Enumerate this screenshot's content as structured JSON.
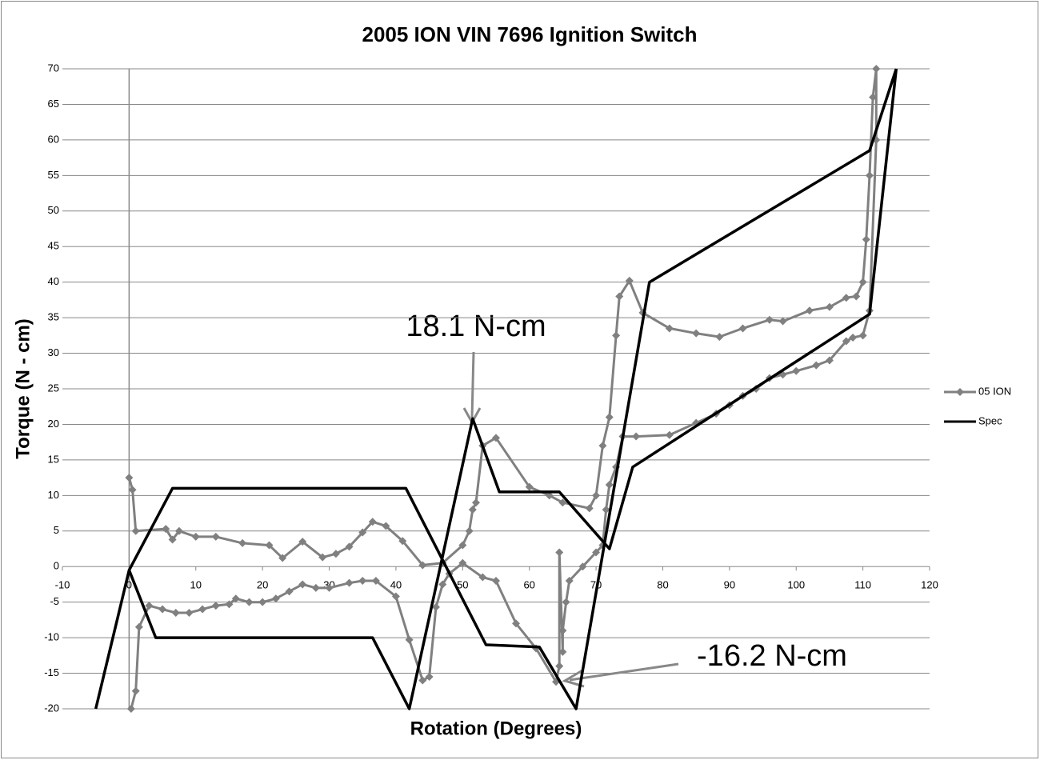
{
  "chart_data": {
    "type": "line",
    "title": "2005 ION VIN 7696 Ignition Switch",
    "x_label": "Rotation (Degrees)",
    "y_label": "Torque (N - cm)",
    "annotations": [
      "18.1 N-cm",
      "-16.2 N-cm"
    ],
    "xlim": [
      -10,
      120
    ],
    "xticks": [
      -10,
      0,
      10,
      20,
      30,
      40,
      50,
      60,
      70,
      80,
      90,
      100,
      110,
      120
    ],
    "ylim": [
      -20,
      70
    ],
    "yticks": [
      -20,
      -15,
      -10,
      -5,
      0,
      5,
      10,
      15,
      20,
      25,
      30,
      35,
      40,
      45,
      50,
      55,
      60,
      65,
      70
    ],
    "grid": true,
    "legend": "right",
    "series": [
      {
        "name": "05 ION",
        "color": "#808080",
        "marker": "diamond",
        "x": [
          0,
          0.5,
          1,
          5.5,
          6.5,
          7.5,
          10,
          13,
          17,
          21,
          23,
          26,
          29,
          31,
          33,
          35,
          36.5,
          38.5,
          41,
          44,
          47,
          50,
          51,
          51.5,
          52,
          53,
          55,
          60,
          63,
          65,
          69,
          70,
          71,
          72,
          73,
          73.5,
          75,
          77,
          81,
          85,
          88.5,
          92,
          96,
          98,
          102,
          105,
          107.5,
          109,
          110,
          110.5,
          111,
          111.5,
          112,
          112,
          111,
          110,
          108.5,
          107.5,
          105,
          103,
          100,
          98,
          96,
          94,
          92,
          90,
          88,
          85,
          81,
          76,
          74,
          73,
          72,
          71.5,
          71,
          70,
          68,
          66,
          65.5,
          65,
          65,
          64.5,
          64.5,
          64,
          61,
          58,
          55,
          53,
          50,
          48,
          47,
          46,
          45,
          44,
          42,
          40,
          37,
          35,
          33,
          30,
          28,
          26,
          24,
          22,
          20,
          18,
          16,
          15,
          13,
          11,
          9,
          7,
          5,
          3,
          1.5,
          1,
          0.3
        ],
        "values": [
          12.5,
          10.8,
          5,
          5.3,
          3.8,
          5,
          4.2,
          4.2,
          3.3,
          3,
          1.2,
          3.5,
          1.3,
          1.8,
          2.8,
          4.8,
          6.3,
          5.7,
          3.6,
          0.2,
          0.5,
          3,
          5,
          8,
          9,
          17,
          18.1,
          11.2,
          10,
          9,
          8.2,
          10,
          17,
          21,
          32.5,
          38,
          40.2,
          35.7,
          33.5,
          32.8,
          32.3,
          33.5,
          34.7,
          34.5,
          36,
          36.5,
          37.8,
          38,
          40,
          46,
          55,
          66,
          70,
          60,
          36,
          32.5,
          32.2,
          31.7,
          29,
          28.3,
          27.5,
          27,
          26.5,
          25,
          24,
          22.7,
          21.5,
          20.2,
          18.5,
          18.3,
          18.3,
          14,
          11.5,
          8,
          3,
          2,
          0,
          -2,
          -5,
          -9,
          -12,
          2,
          -14,
          -16.2,
          -11.5,
          -8,
          -2,
          -1.5,
          0.5,
          -1,
          -2.5,
          -5.7,
          -15.5,
          -16,
          -10.3,
          -4.2,
          -2,
          -2,
          -2.3,
          -3,
          -3,
          -2.5,
          -3.5,
          -4.5,
          -5,
          -5,
          -4.5,
          -5.3,
          -5.5,
          -6,
          -6.5,
          -6.5,
          -6,
          -5.5,
          -8.5,
          -17.5,
          -20
        ]
      },
      {
        "name": "Spec",
        "color": "#000000",
        "x": [
          -5,
          0,
          6.5,
          41.5,
          53.5,
          61.5,
          67,
          78,
          111,
          115,
          null,
          0,
          4,
          36.5,
          42,
          51.5,
          55.5,
          64.5,
          72,
          75.5,
          111,
          115
        ],
        "values": [
          -20,
          -0.5,
          11,
          11,
          -11,
          -11.3,
          -20,
          40,
          58.5,
          70,
          null,
          -0.5,
          -10,
          -10,
          -20,
          20.8,
          10.5,
          10.5,
          2.5,
          14,
          35.5,
          70
        ]
      }
    ]
  }
}
